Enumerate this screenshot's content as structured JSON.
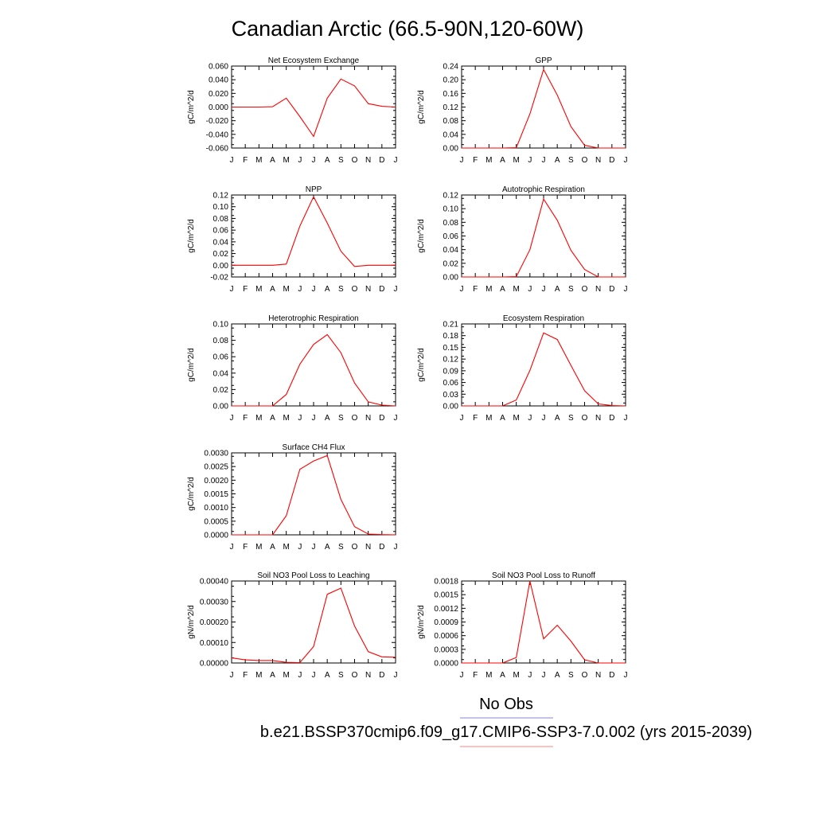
{
  "main_title": "Canadian Arctic (66.5-90N,120-60W)",
  "month_ticks": [
    "J",
    "F",
    "M",
    "A",
    "M",
    "J",
    "J",
    "A",
    "S",
    "O",
    "N",
    "D",
    "J"
  ],
  "legend": {
    "obs_label": "No Obs",
    "obs_color": "#8080ff",
    "model_label": "b.e21.BSSP370cmip6.f09_g17.CMIP6-SSP3-7.0.002 (yrs 2015-2039)",
    "model_color": "#ff8080"
  },
  "line_color": "#ff0000",
  "chart_data": [
    {
      "type": "line",
      "title": "Net Ecosystem Exchange",
      "ylabel": "gC/m^2/d",
      "ylim": [
        -0.06,
        0.06
      ],
      "yticks": [
        "-0.060",
        "-0.040",
        "-0.020",
        "0.000",
        "0.020",
        "0.040",
        "0.060"
      ],
      "x": [
        1,
        2,
        3,
        4,
        5,
        6,
        7,
        8,
        9,
        10,
        11,
        12,
        13
      ],
      "values": [
        0.0,
        0.0,
        0.0,
        0.0005,
        0.013,
        -0.014,
        -0.043,
        0.013,
        0.041,
        0.031,
        0.005,
        0.001,
        0.0
      ]
    },
    {
      "type": "line",
      "title": "GPP",
      "ylabel": "gC/m^2/d",
      "ylim": [
        0,
        0.24
      ],
      "yticks": [
        "0.00",
        "0.04",
        "0.08",
        "0.12",
        "0.16",
        "0.20",
        "0.24"
      ],
      "x": [
        1,
        2,
        3,
        4,
        5,
        6,
        7,
        8,
        9,
        10,
        11,
        12,
        13
      ],
      "values": [
        0.0,
        0.0,
        0.0,
        0.0,
        0.001,
        0.1,
        0.23,
        0.155,
        0.063,
        0.008,
        0.0,
        0.0,
        0.0
      ]
    },
    {
      "type": "line",
      "title": "NPP",
      "ylabel": "gC/m^2/d",
      "ylim": [
        -0.02,
        0.12
      ],
      "yticks": [
        "-0.02",
        "0.00",
        "0.02",
        "0.04",
        "0.06",
        "0.08",
        "0.10",
        "0.12"
      ],
      "x": [
        1,
        2,
        3,
        4,
        5,
        6,
        7,
        8,
        9,
        10,
        11,
        12,
        13
      ],
      "values": [
        0.0,
        0.0,
        0.0,
        0.0,
        0.002,
        0.067,
        0.117,
        0.072,
        0.024,
        -0.002,
        0.0,
        0.0,
        0.0
      ]
    },
    {
      "type": "line",
      "title": "Autotrophic Respiration",
      "ylabel": "gC/m^2/d",
      "ylim": [
        0,
        0.12
      ],
      "yticks": [
        "0.00",
        "0.02",
        "0.04",
        "0.06",
        "0.08",
        "0.10",
        "0.12"
      ],
      "x": [
        1,
        2,
        3,
        4,
        5,
        6,
        7,
        8,
        9,
        10,
        11,
        12,
        13
      ],
      "values": [
        0.0,
        0.0,
        0.0,
        0.0,
        0.0005,
        0.04,
        0.114,
        0.083,
        0.039,
        0.011,
        0.0,
        0.0,
        0.0
      ]
    },
    {
      "type": "line",
      "title": "Heterotrophic Respiration",
      "ylabel": "gC/m^2/d",
      "ylim": [
        0,
        0.1
      ],
      "yticks": [
        "0.00",
        "0.02",
        "0.04",
        "0.06",
        "0.08",
        "0.10"
      ],
      "x": [
        1,
        2,
        3,
        4,
        5,
        6,
        7,
        8,
        9,
        10,
        11,
        12,
        13
      ],
      "values": [
        0.0,
        0.0,
        0.0,
        0.0,
        0.014,
        0.051,
        0.075,
        0.087,
        0.065,
        0.028,
        0.005,
        0.001,
        0.0
      ]
    },
    {
      "type": "line",
      "title": "Ecosystem Respiration",
      "ylabel": "gC/m^2/d",
      "ylim": [
        0,
        0.21
      ],
      "yticks": [
        "0.00",
        "0.03",
        "0.06",
        "0.09",
        "0.12",
        "0.15",
        "0.18",
        "0.21"
      ],
      "x": [
        1,
        2,
        3,
        4,
        5,
        6,
        7,
        8,
        9,
        10,
        11,
        12,
        13
      ],
      "values": [
        0.0,
        0.0,
        0.0,
        0.0,
        0.015,
        0.091,
        0.187,
        0.17,
        0.104,
        0.039,
        0.005,
        0.001,
        0.0
      ]
    },
    {
      "type": "line",
      "title": "Surface CH4 Flux",
      "ylabel": "gC/m^2/d",
      "ylim": [
        0,
        0.003
      ],
      "yticks": [
        "0.0000",
        "0.0005",
        "0.0010",
        "0.0015",
        "0.0020",
        "0.0025",
        "0.0030"
      ],
      "x": [
        1,
        2,
        3,
        4,
        5,
        6,
        7,
        8,
        9,
        10,
        11,
        12,
        13
      ],
      "values": [
        0.0,
        0.0,
        0.0,
        0.0,
        0.0007,
        0.0024,
        0.0027,
        0.0029,
        0.0013,
        0.0003,
        3e-05,
        1e-05,
        0.0
      ]
    },
    {
      "type": "line",
      "title": "Soil NO3 Pool Loss to Leaching",
      "ylabel": "gN/m^2/d",
      "ylim": [
        0,
        0.0004
      ],
      "yticks": [
        "0.00000",
        "0.00010",
        "0.00020",
        "0.00030",
        "0.00040"
      ],
      "x": [
        1,
        2,
        3,
        4,
        5,
        6,
        7,
        8,
        9,
        10,
        11,
        12,
        13
      ],
      "values": [
        2.5e-05,
        1.5e-05,
        1.2e-05,
        1.2e-05,
        3e-06,
        2e-06,
        8e-05,
        0.000335,
        0.000365,
        0.00018,
        5.5e-05,
        3e-05,
        2.8e-05
      ]
    },
    {
      "type": "line",
      "title": "Soil NO3 Pool Loss to Runoff",
      "ylabel": "gN/m^2/d",
      "ylim": [
        0,
        0.0018
      ],
      "yticks": [
        "0.0000",
        "0.0003",
        "0.0006",
        "0.0009",
        "0.0012",
        "0.0015",
        "0.0018"
      ],
      "x": [
        1,
        2,
        3,
        4,
        5,
        6,
        7,
        8,
        9,
        10,
        11,
        12,
        13
      ],
      "values": [
        0.0,
        0.0,
        0.0,
        0.0,
        0.00012,
        0.0018,
        0.00053,
        0.00083,
        0.00048,
        7e-05,
        0.0,
        0.0,
        0.0
      ]
    }
  ]
}
